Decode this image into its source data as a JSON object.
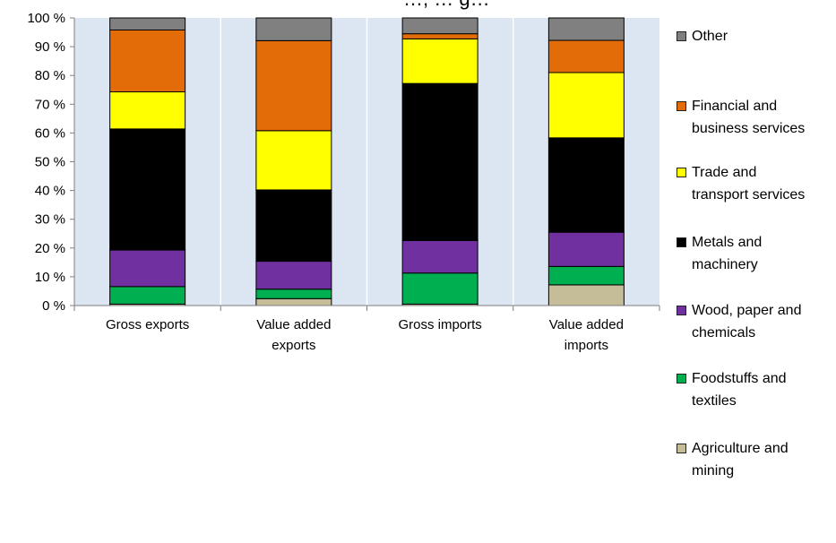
{
  "chart_data": {
    "type": "bar",
    "stacked": true,
    "title": "…, … g…",
    "categories": [
      "Gross exports",
      "Value added exports",
      "Gross imports",
      "Value added imports"
    ],
    "category_labels": [
      [
        "Gross exports"
      ],
      [
        "Value added",
        "exports"
      ],
      [
        "Gross imports"
      ],
      [
        "Value added",
        "imports"
      ]
    ],
    "y_ticks": [
      "0 %",
      "10 %",
      "20 %",
      "30 %",
      "40 %",
      "50 %",
      "60 %",
      "70 %",
      "80 %",
      "90 %",
      "100 %"
    ],
    "ylim": [
      0,
      100
    ],
    "grid": false,
    "legend_position": "right",
    "plot_background": "#dce6f2",
    "series": [
      {
        "name": "Agriculture and mining",
        "color": "#c4bd97",
        "values": [
          0.5,
          2.4,
          0.5,
          7.2
        ]
      },
      {
        "name": "Foodstuffs and textiles",
        "color": "#00b050",
        "values": [
          6.1,
          3.3,
          10.8,
          6.4
        ]
      },
      {
        "name": "Wood, paper and chemicals",
        "color": "#7030a0",
        "values": [
          12.7,
          9.7,
          11.3,
          11.9
        ]
      },
      {
        "name": "Metals and machinery",
        "color": "#000000",
        "values": [
          42.1,
          24.8,
          54.6,
          32.8
        ]
      },
      {
        "name": "Trade and transport services",
        "color": "#ffff00",
        "values": [
          12.9,
          20.6,
          15.5,
          22.7
        ]
      },
      {
        "name": "Financial and business services",
        "color": "#e36c09",
        "values": [
          21.5,
          31.3,
          1.8,
          11.2
        ]
      },
      {
        "name": "Other",
        "color": "#808080",
        "values": [
          4.2,
          7.9,
          5.5,
          7.8
        ]
      }
    ]
  },
  "legend": {
    "items": [
      {
        "label": "Other",
        "color": "#808080",
        "icon": "gray-square-swatch"
      },
      {
        "label": "Financial and\nbusiness services",
        "color": "#e36c09",
        "icon": "orange-square-swatch"
      },
      {
        "label": "Trade and\ntransport services",
        "color": "#ffff00",
        "icon": "yellow-square-swatch"
      },
      {
        "label": "Metals and\nmachinery",
        "color": "#000000",
        "icon": "black-square-swatch"
      },
      {
        "label": "Wood, paper and\nchemicals",
        "color": "#7030a0",
        "icon": "purple-square-swatch"
      },
      {
        "label": "Foodstuffs and\ntextiles",
        "color": "#00b050",
        "icon": "green-square-swatch"
      },
      {
        "label": "Agriculture and\nmining",
        "color": "#c4bd97",
        "icon": "tan-square-swatch"
      }
    ]
  }
}
